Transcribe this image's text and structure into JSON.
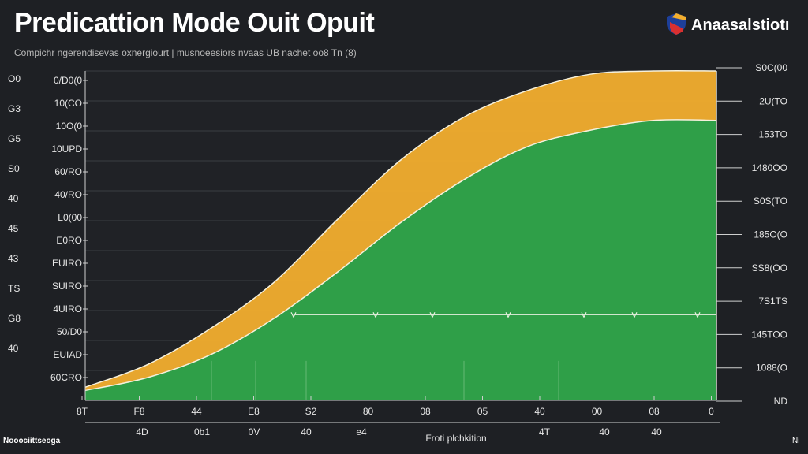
{
  "title": "Predicattion Mode Ouit Opuit",
  "subtitle": "Compichr ngerendisevas oxnergiourt | musnoeesiors nvaas UB nachet oo8 Tn (8)",
  "brand": {
    "logo": "shield-logo",
    "text": "Anaasalstiotı"
  },
  "footer": {
    "left": "Nooociittseoga",
    "right": "Ni"
  },
  "colors": {
    "background": "#1e2024",
    "orange": "#f2ae2e",
    "green": "#2f9f48",
    "outline": "#f5f0dc"
  },
  "chart_data": {
    "type": "area",
    "title": "Predicattion Mode Ouit Opuit",
    "subtitle": "Compichr ngerendisevas oxnergiourt | musnoeesiors nvaas UB nachet oo8 Tn (8)",
    "xlabel": "Froti plchkition",
    "xlim": [
      0,
      100
    ],
    "ylim": [
      0,
      100
    ],
    "grid": true,
    "legend": "none",
    "left_outer_labels": [
      "O0",
      "G3",
      "G5",
      "S0",
      "40",
      "45",
      "43",
      "TS",
      "G8",
      "40"
    ],
    "left_inner_labels": [
      "0/D0(0",
      "10(CO",
      "10O(0",
      "10UPD",
      "60/RO",
      "40/RO",
      "L0(00",
      "E0RO",
      "EUIRO",
      "SUIRO",
      "4UIRO",
      "50/D0",
      "EUIAD",
      "60CRO"
    ],
    "right_labels": [
      "S0C(00",
      "2U(TO",
      "153TO",
      "1480OO",
      "S0S(TO",
      "185O(O",
      "SS8(OO",
      "7S1TS",
      "145TOO",
      "1088(O",
      "ND"
    ],
    "x_tick_labels": [
      "8T",
      "F8",
      "44",
      "E8",
      "S2",
      "80",
      "08",
      "05",
      "40",
      "00",
      "08",
      "0"
    ],
    "x_sub_labels": [
      "4D",
      "0b1",
      "0V",
      "40",
      "e4",
      "4T",
      "40",
      "40"
    ],
    "series": [
      {
        "x": [
          0,
          10,
          20,
          30,
          40,
          50,
          60,
          70,
          80,
          90,
          100
        ],
        "values": [
          3,
          7,
          14,
          25,
          39,
          54,
          67,
          77,
          82,
          85,
          85
        ]
      },
      {
        "x": [
          0,
          10,
          20,
          30,
          40,
          50,
          60,
          70,
          80,
          90,
          100
        ],
        "values": [
          4,
          11,
          22,
          36,
          55,
          73,
          86,
          94,
          99,
          100,
          100
        ]
      }
    ],
    "reference_line": {
      "y": 26
    },
    "marker_x": [
      33,
      46,
      55,
      67,
      79,
      87,
      97
    ]
  }
}
